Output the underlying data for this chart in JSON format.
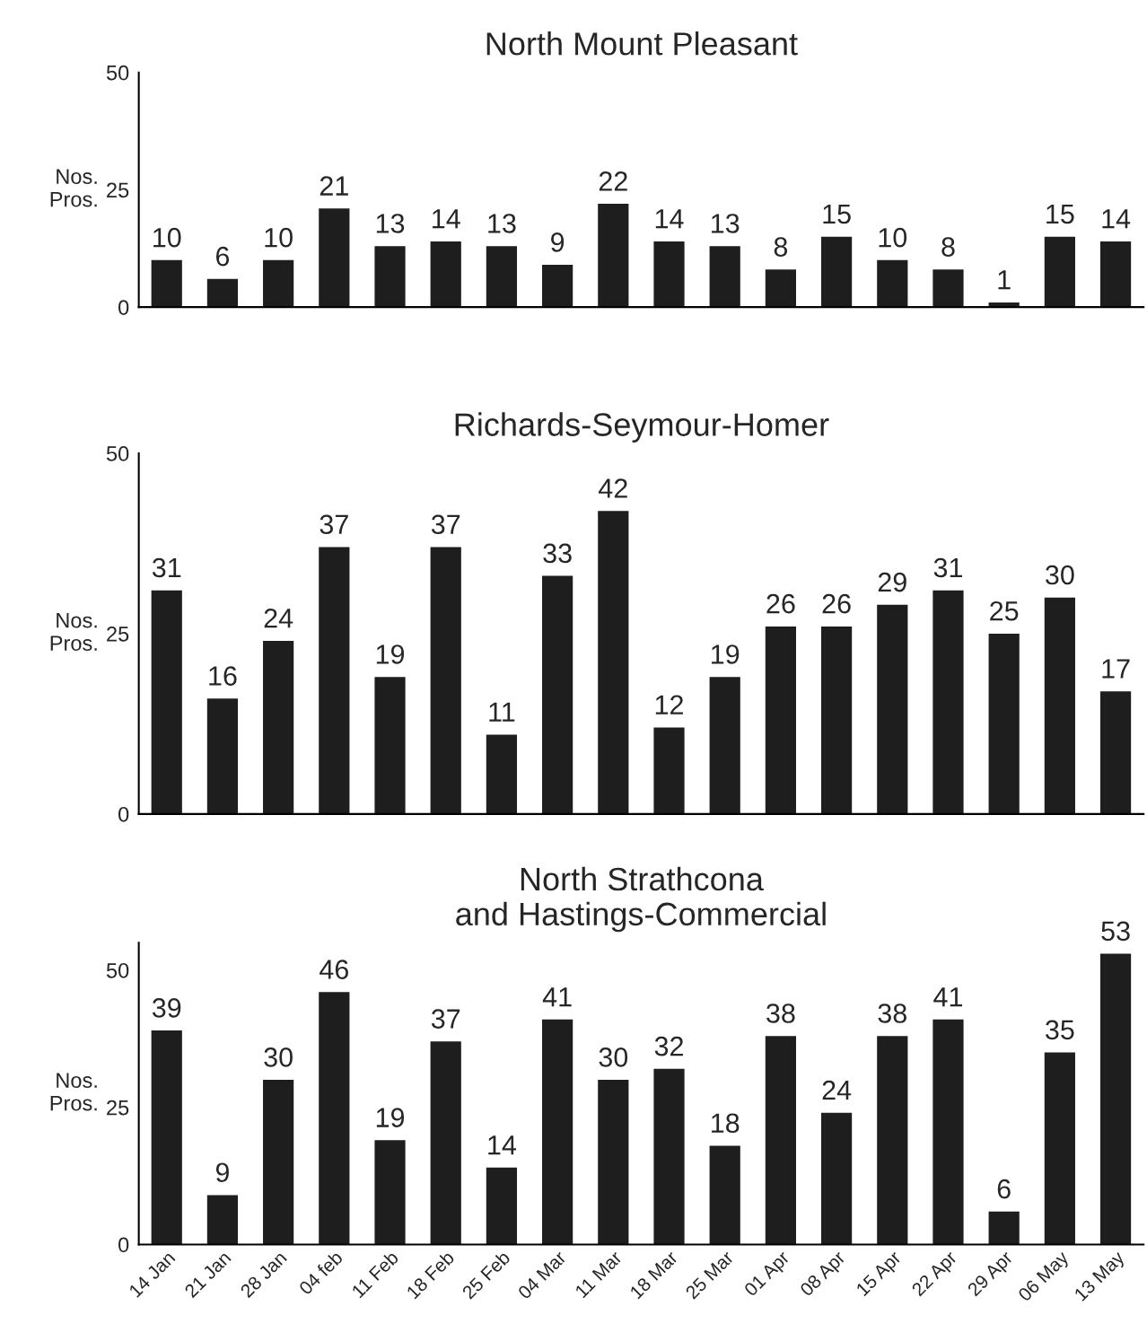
{
  "chart_data": [
    {
      "type": "bar",
      "title": "North Mount Pleasant",
      "ylabel": "Nos.\nPros.",
      "categories": [
        null,
        null,
        null,
        null,
        null,
        null,
        null,
        null,
        null,
        null,
        null,
        null,
        null,
        null,
        null,
        null,
        null,
        null
      ],
      "values": [
        10,
        6,
        10,
        21,
        13,
        14,
        13,
        9,
        22,
        14,
        13,
        8,
        15,
        10,
        8,
        1,
        15,
        14
      ],
      "color": "#1e1e1e",
      "ylim": [
        0,
        50
      ],
      "yticks": [
        0,
        25,
        50
      ],
      "data_labels": true,
      "grid": false,
      "legend": false
    },
    {
      "type": "bar",
      "title": "Richards-Seymour-Homer",
      "ylabel": "Nos.\nPros.",
      "categories": [
        null,
        null,
        null,
        null,
        null,
        null,
        null,
        null,
        null,
        null,
        null,
        null,
        null,
        null,
        null,
        null,
        null,
        null
      ],
      "values": [
        31,
        16,
        24,
        37,
        19,
        37,
        11,
        33,
        42,
        12,
        19,
        26,
        26,
        29,
        31,
        25,
        30,
        17
      ],
      "color": "#1e1e1e",
      "ylim": [
        0,
        50
      ],
      "yticks": [
        0,
        25,
        50
      ],
      "data_labels": true,
      "grid": false,
      "legend": false
    },
    {
      "type": "bar",
      "title": "North Strathcona\nand Hastings-Commercial",
      "ylabel": "Nos.\nPros.",
      "categories": [
        "14 Jan",
        "21 Jan",
        "28 Jan",
        "04 feb",
        "11 Feb",
        "18 Feb",
        "25 Feb",
        "04 Mar",
        "11 Mar",
        "18 Mar",
        "25 Mar",
        "01 Apr",
        "08 Apr",
        "15 Apr",
        "22 Apr",
        "29 Apr",
        "06 May",
        "13 May"
      ],
      "values": [
        39,
        9,
        30,
        46,
        19,
        37,
        14,
        41,
        30,
        32,
        18,
        38,
        24,
        38,
        41,
        6,
        35,
        53
      ],
      "color": "#1e1e1e",
      "ylim": [
        0,
        55
      ],
      "yticks": [
        0,
        25,
        50
      ],
      "data_labels": true,
      "grid": false,
      "legend": false
    }
  ]
}
